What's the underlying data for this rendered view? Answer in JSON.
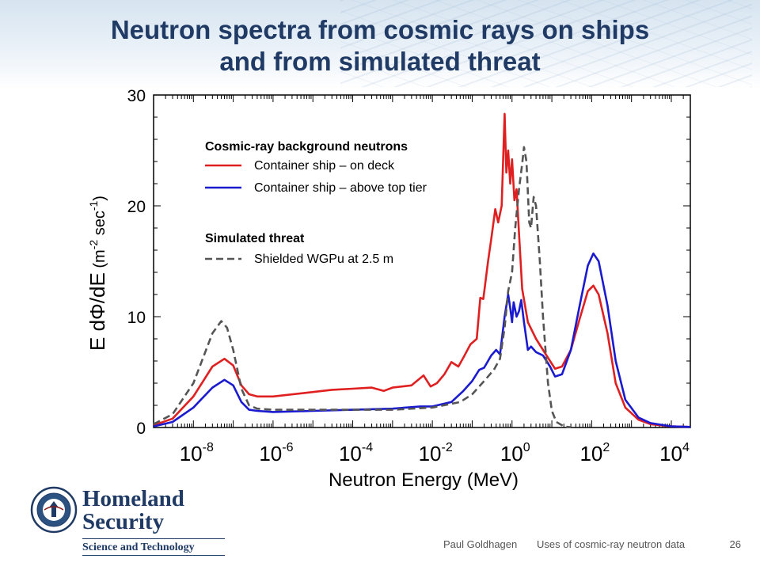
{
  "slide": {
    "title_line1": "Neutron spectra from cosmic rays on ships",
    "title_line2": "and from simulated threat"
  },
  "footer": {
    "author": "Paul Goldhagen",
    "talk": "Uses of cosmic-ray neutron data",
    "page_number": "26"
  },
  "logo": {
    "agency_line1": "Homeland",
    "agency_line2": "Security",
    "subtitle": "Science and Technology",
    "seal_icon": "dhs-seal-icon"
  },
  "colors": {
    "title": "#1f3a64",
    "on_deck": "#e02020",
    "above_top_tier": "#1a1ad0",
    "wgpu": "#555555"
  },
  "chart_data": {
    "type": "line",
    "title": "",
    "xlabel": "Neutron Energy  (MeV)",
    "ylabel_main": "E dΦ/dE",
    "ylabel_units": "(m",
    "ylabel_exp1": "-2",
    "ylabel_mid": " sec",
    "ylabel_exp2": "-1",
    "ylabel_end": ")",
    "x_scale": "log",
    "xlim": [
      1e-09,
      30000.0
    ],
    "ylim": [
      0,
      30
    ],
    "grid": false,
    "x_ticks": [
      {
        "base": "10",
        "exp": "-8",
        "value": 1e-08
      },
      {
        "base": "10",
        "exp": "-6",
        "value": 1e-06
      },
      {
        "base": "10",
        "exp": "-4",
        "value": 0.0001
      },
      {
        "base": "10",
        "exp": "-2",
        "value": 0.01
      },
      {
        "base": "10",
        "exp": "0",
        "value": 1
      },
      {
        "base": "10",
        "exp": "2",
        "value": 100
      },
      {
        "base": "10",
        "exp": "4",
        "value": 10000
      }
    ],
    "y_ticks": [
      {
        "label": "0",
        "value": 0
      },
      {
        "label": "10",
        "value": 10
      },
      {
        "label": "20",
        "value": 20
      },
      {
        "label": "30",
        "value": 30
      }
    ],
    "legend": {
      "placement": "top-left",
      "group1": "Cosmic-ray background neutrons",
      "group2": "Simulated threat"
    },
    "series": [
      {
        "name": "Container ship – on deck",
        "color": "#e02020",
        "dash": "solid",
        "group": 1,
        "points": [
          [
            1e-09,
            0.2
          ],
          [
            3e-09,
            0.8
          ],
          [
            1e-08,
            2.8
          ],
          [
            3e-08,
            5.5
          ],
          [
            6e-08,
            6.2
          ],
          [
            1e-07,
            5.6
          ],
          [
            1.6e-07,
            3.8
          ],
          [
            2.5e-07,
            3.0
          ],
          [
            4e-07,
            2.8
          ],
          [
            1e-06,
            2.8
          ],
          [
            1e-05,
            3.2
          ],
          [
            3e-05,
            3.4
          ],
          [
            0.0001,
            3.5
          ],
          [
            0.0003,
            3.6
          ],
          [
            0.0006,
            3.3
          ],
          [
            0.001,
            3.6
          ],
          [
            0.003,
            3.8
          ],
          [
            0.006,
            4.7
          ],
          [
            0.009,
            3.7
          ],
          [
            0.013,
            4.0
          ],
          [
            0.02,
            4.8
          ],
          [
            0.03,
            5.9
          ],
          [
            0.045,
            5.5
          ],
          [
            0.06,
            6.3
          ],
          [
            0.09,
            7.5
          ],
          [
            0.13,
            8.0
          ],
          [
            0.16,
            11.7
          ],
          [
            0.19,
            11.6
          ],
          [
            0.25,
            15.0
          ],
          [
            0.3,
            17.0
          ],
          [
            0.38,
            19.7
          ],
          [
            0.45,
            18.5
          ],
          [
            0.55,
            20.0
          ],
          [
            0.65,
            28.3
          ],
          [
            0.72,
            23.0
          ],
          [
            0.8,
            25.0
          ],
          [
            0.9,
            22.0
          ],
          [
            1.0,
            24.2
          ],
          [
            1.15,
            20.5
          ],
          [
            1.3,
            21.5
          ],
          [
            1.5,
            17.5
          ],
          [
            1.8,
            12.5
          ],
          [
            2.5,
            9.5
          ],
          [
            4,
            8.0
          ],
          [
            6,
            7.0
          ],
          [
            9,
            6.0
          ],
          [
            12,
            5.3
          ],
          [
            18,
            5.5
          ],
          [
            30,
            7.0
          ],
          [
            50,
            9.8
          ],
          [
            80,
            12.3
          ],
          [
            110,
            12.8
          ],
          [
            150,
            12.0
          ],
          [
            250,
            8.5
          ],
          [
            400,
            4.0
          ],
          [
            700,
            1.8
          ],
          [
            1500,
            0.7
          ],
          [
            3000,
            0.3
          ],
          [
            10000,
            0.1
          ],
          [
            30000,
            0.05
          ]
        ]
      },
      {
        "name": "Container ship – above top tier",
        "color": "#1a1ad0",
        "dash": "solid",
        "group": 1,
        "points": [
          [
            1e-09,
            0.1
          ],
          [
            3e-09,
            0.5
          ],
          [
            1e-08,
            1.8
          ],
          [
            3e-08,
            3.6
          ],
          [
            6e-08,
            4.3
          ],
          [
            1e-07,
            3.8
          ],
          [
            1.6e-07,
            2.3
          ],
          [
            2.5e-07,
            1.6
          ],
          [
            4e-07,
            1.5
          ],
          [
            1e-06,
            1.4
          ],
          [
            1e-05,
            1.5
          ],
          [
            0.0001,
            1.6
          ],
          [
            0.001,
            1.7
          ],
          [
            0.005,
            1.9
          ],
          [
            0.01,
            1.9
          ],
          [
            0.03,
            2.3
          ],
          [
            0.06,
            3.3
          ],
          [
            0.1,
            4.2
          ],
          [
            0.15,
            5.2
          ],
          [
            0.2,
            5.4
          ],
          [
            0.3,
            6.5
          ],
          [
            0.4,
            7.0
          ],
          [
            0.5,
            6.6
          ],
          [
            0.65,
            10.0
          ],
          [
            0.8,
            12.0
          ],
          [
            0.9,
            10.8
          ],
          [
            1.0,
            9.5
          ],
          [
            1.1,
            11.3
          ],
          [
            1.3,
            10.0
          ],
          [
            1.5,
            10.5
          ],
          [
            1.7,
            11.5
          ],
          [
            2.0,
            9.5
          ],
          [
            2.5,
            7.0
          ],
          [
            3,
            7.3
          ],
          [
            4,
            6.8
          ],
          [
            6,
            6.5
          ],
          [
            9,
            5.5
          ],
          [
            12,
            4.6
          ],
          [
            18,
            4.8
          ],
          [
            30,
            7.0
          ],
          [
            50,
            11.0
          ],
          [
            80,
            14.6
          ],
          [
            110,
            15.7
          ],
          [
            150,
            15.0
          ],
          [
            250,
            11.0
          ],
          [
            400,
            6.0
          ],
          [
            700,
            2.5
          ],
          [
            1500,
            0.9
          ],
          [
            3000,
            0.4
          ],
          [
            10000,
            0.1
          ],
          [
            30000,
            0.05
          ]
        ]
      },
      {
        "name": "Shielded WGPu at 2.5 m",
        "color": "#555555",
        "dash": "dashed",
        "group": 2,
        "points": [
          [
            1e-09,
            0.3
          ],
          [
            3e-09,
            1.2
          ],
          [
            1e-08,
            4.0
          ],
          [
            3e-08,
            8.5
          ],
          [
            5e-08,
            9.6
          ],
          [
            7e-08,
            9.0
          ],
          [
            1e-07,
            7.0
          ],
          [
            1.6e-07,
            3.5
          ],
          [
            2.5e-07,
            2.0
          ],
          [
            4e-07,
            1.7
          ],
          [
            1e-06,
            1.6
          ],
          [
            1e-05,
            1.6
          ],
          [
            0.0001,
            1.6
          ],
          [
            0.001,
            1.6
          ],
          [
            0.01,
            1.8
          ],
          [
            0.05,
            2.3
          ],
          [
            0.1,
            3.0
          ],
          [
            0.2,
            4.2
          ],
          [
            0.35,
            5.2
          ],
          [
            0.5,
            6.2
          ],
          [
            0.65,
            9.0
          ],
          [
            0.8,
            12.3
          ],
          [
            1.0,
            14.0
          ],
          [
            1.2,
            18.0
          ],
          [
            1.5,
            21.5
          ],
          [
            1.8,
            23.8
          ],
          [
            2.0,
            25.3
          ],
          [
            2.3,
            24.0
          ],
          [
            2.7,
            18.5
          ],
          [
            3.0,
            18.0
          ],
          [
            3.5,
            20.8
          ],
          [
            4.0,
            20.0
          ],
          [
            5,
            15.0
          ],
          [
            6,
            10.0
          ],
          [
            8,
            4.0
          ],
          [
            10,
            1.5
          ],
          [
            13,
            0.5
          ],
          [
            20,
            0.1
          ],
          [
            30,
            0.02
          ]
        ]
      }
    ]
  }
}
